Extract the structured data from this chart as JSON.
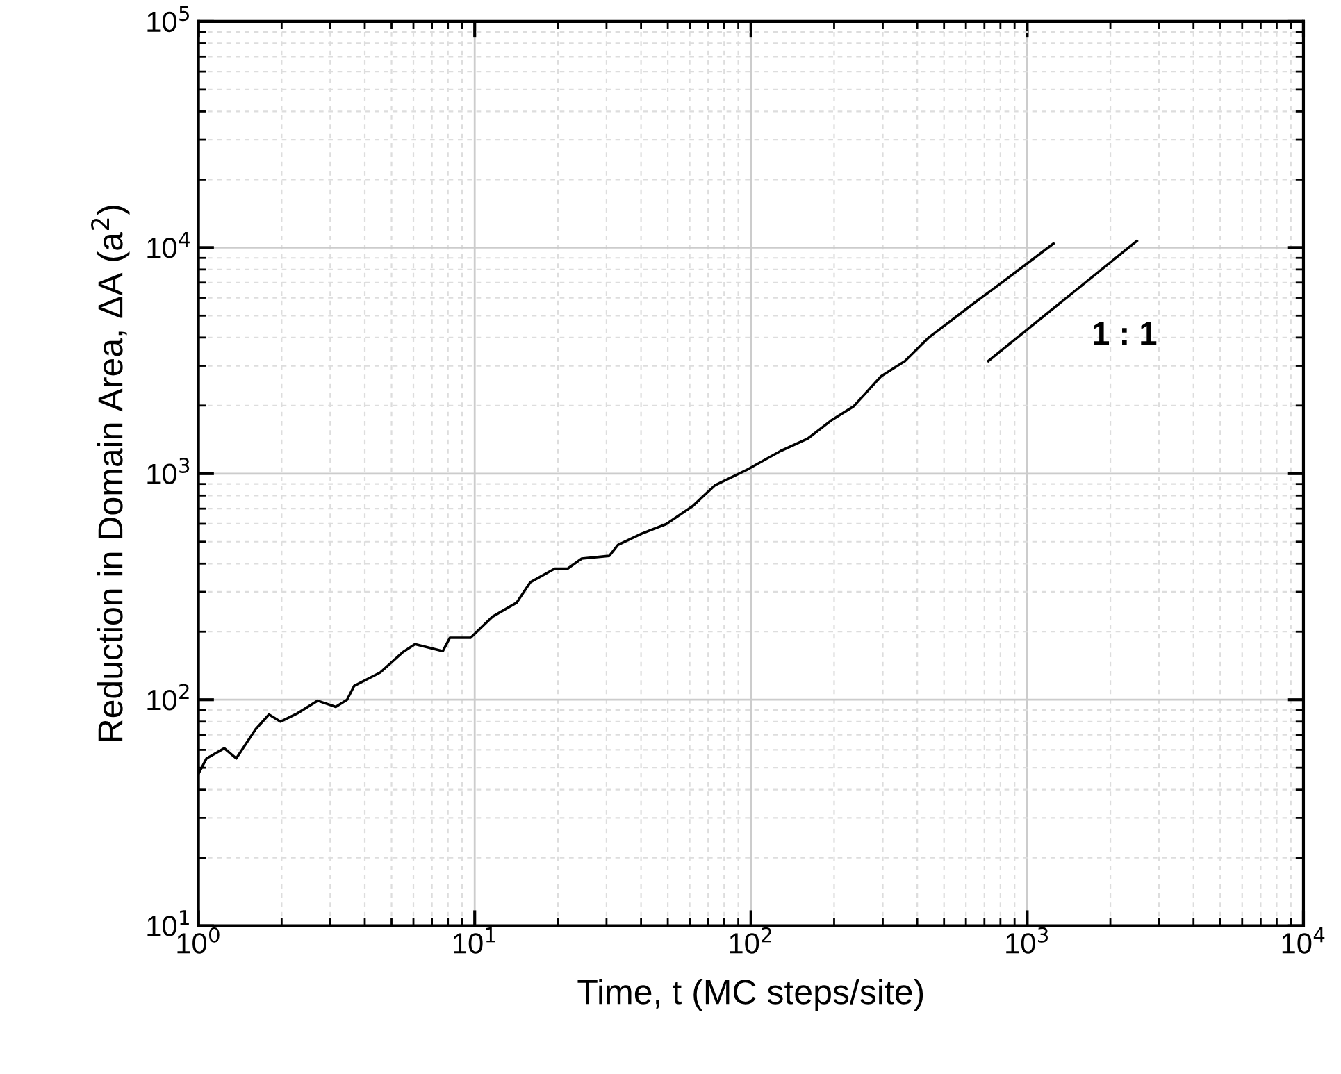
{
  "chart_data": {
    "type": "line",
    "xlabel": "Time, t (MC steps/site)",
    "ylabel": "Reduction in Domain Area, ΔA (a$^{2}$)",
    "log": "xy",
    "grid": true,
    "xlim": [
      1,
      10000
    ],
    "ylim": [
      10,
      100000
    ],
    "xticks": [
      {
        "value": 1,
        "label": "10$^{0}$"
      },
      {
        "value": 10,
        "label": "10$^{1}$"
      },
      {
        "value": 100,
        "label": "10$^{2}$"
      },
      {
        "value": 1000,
        "label": "10$^{3}$"
      },
      {
        "value": 10000,
        "label": "10$^{4}$"
      }
    ],
    "yticks": [
      {
        "value": 10,
        "label": "10$^{1}$"
      },
      {
        "value": 100,
        "label": "10$^{2}$"
      },
      {
        "value": 1000,
        "label": "10$^{3}$"
      },
      {
        "value": 10000,
        "label": "10$^{4}$"
      },
      {
        "value": 100000,
        "label": "10$^{5}$"
      }
    ],
    "series": [
      {
        "color": "#000000",
        "x": [
          1,
          1.07,
          1.24,
          1.37,
          1.61,
          1.8,
          1.98,
          2.28,
          2.7,
          3.14,
          3.45,
          3.66,
          4.55,
          5.48,
          6.08,
          7.66,
          8.13,
          9.66,
          11.6,
          14.2,
          15.9,
          19.5,
          21.7,
          24.4,
          30.7,
          33,
          40.1,
          49.3,
          61.5,
          74,
          97.7,
          128,
          161,
          195,
          235,
          296,
          361,
          440,
          644,
          813,
          1023,
          1245
        ],
        "values": [
          47,
          55,
          61,
          55,
          74,
          86,
          80,
          87,
          99,
          93,
          100,
          115,
          132,
          162,
          176,
          164,
          188,
          188,
          233,
          269,
          331,
          380,
          380,
          421,
          433,
          484,
          542,
          598,
          718,
          887,
          1047,
          1259,
          1432,
          1718,
          1982,
          2698,
          3148,
          4000,
          5690,
          7030,
          8690,
          10420
        ]
      },
      {
        "color": "#000000",
        "x": [
          723,
          2495
        ],
        "values": [
          3150,
          10700
        ]
      }
    ],
    "annotations": [
      "1 : 1"
    ]
  }
}
